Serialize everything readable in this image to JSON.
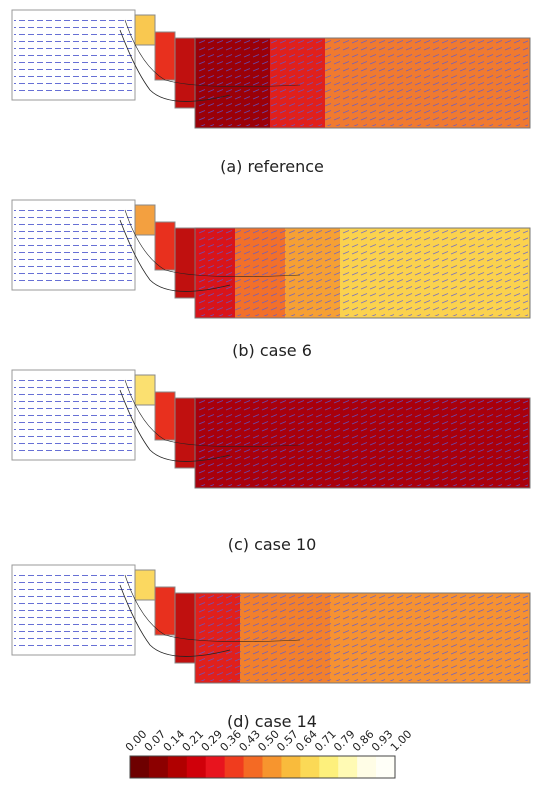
{
  "panels": [
    {
      "caption": "(a) reference"
    },
    {
      "caption": "(b) case 6"
    },
    {
      "caption": "(c) case 10"
    },
    {
      "caption": "(d) case 14"
    }
  ],
  "colorbar": {
    "ticks": [
      "0.00",
      "0.07",
      "0.14",
      "0.21",
      "0.29",
      "0.36",
      "0.43",
      "0.50",
      "0.57",
      "0.64",
      "0.71",
      "0.79",
      "0.86",
      "0.93",
      "1.00"
    ],
    "colors": [
      "#6e0000",
      "#8c0000",
      "#b00000",
      "#d0000a",
      "#e8141e",
      "#f03c1e",
      "#f46a24",
      "#f7952e",
      "#f9bb3c",
      "#fbd956",
      "#fdf07c",
      "#fffab4",
      "#fffde6",
      "#fffff8"
    ]
  }
}
